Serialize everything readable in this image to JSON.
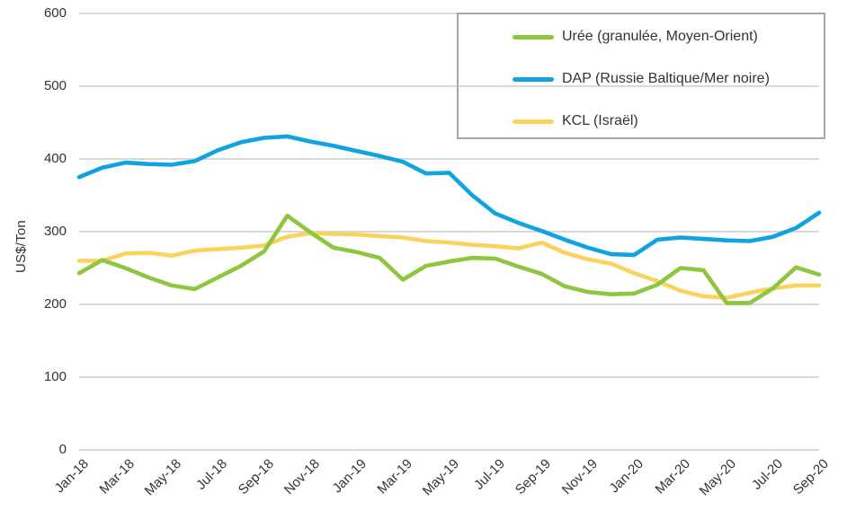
{
  "chart_data": {
    "type": "line",
    "title": "",
    "xlabel": "",
    "ylabel": "US$/Ton",
    "ylim": [
      0,
      600
    ],
    "yticks": [
      0,
      100,
      200,
      300,
      400,
      500,
      600
    ],
    "x_tick_every": 2,
    "grid": "horizontal",
    "grid_color": "#D9D9D9",
    "text_color": "#333333",
    "legend_position": "top-right",
    "legend_border_color": "#A6A6A6",
    "x_labels": [
      "Jan-18",
      "Feb-18",
      "Mar-18",
      "Apr-18",
      "May-18",
      "Jun-18",
      "Jul-18",
      "Aug-18",
      "Sep-18",
      "Oct-18",
      "Nov-18",
      "Dec-18",
      "Jan-19",
      "Feb-19",
      "Mar-19",
      "Apr-19",
      "May-19",
      "Jun-19",
      "Jul-19",
      "Aug-19",
      "Sep-19",
      "Oct-19",
      "Nov-19",
      "Dec-19",
      "Jan-20",
      "Feb-20",
      "Mar-20",
      "Apr-20",
      "May-20",
      "Jun-20",
      "Jul-20",
      "Aug-20",
      "Sep-20"
    ],
    "series": [
      {
        "name": "Urée (granulée, Moyen-Orient)",
        "color": "#8FC640",
        "values": [
          243,
          261,
          250,
          237,
          226,
          221,
          237,
          253,
          273,
          322,
          299,
          278,
          272,
          264,
          234,
          253,
          259,
          264,
          263,
          252,
          242,
          225,
          217,
          214,
          215,
          227,
          250,
          247,
          202,
          202,
          222,
          251,
          241
        ]
      },
      {
        "name": "DAP (Russie Baltique/Mer noire)",
        "color": "#10A3E0",
        "values": [
          375,
          388,
          395,
          393,
          392,
          397,
          412,
          423,
          429,
          431,
          424,
          418,
          411,
          404,
          396,
          380,
          381,
          350,
          325,
          312,
          301,
          289,
          278,
          269,
          268,
          289,
          292,
          290,
          288,
          287,
          293,
          305,
          326
        ]
      },
      {
        "name": "KCL (Israël)",
        "color": "#FAD35F",
        "values": [
          260,
          260,
          270,
          271,
          267,
          274,
          276,
          278,
          281,
          293,
          298,
          297,
          296,
          294,
          292,
          287,
          285,
          282,
          280,
          277,
          285,
          271,
          262,
          256,
          243,
          232,
          219,
          211,
          209,
          216,
          222,
          226,
          226
        ]
      }
    ]
  }
}
